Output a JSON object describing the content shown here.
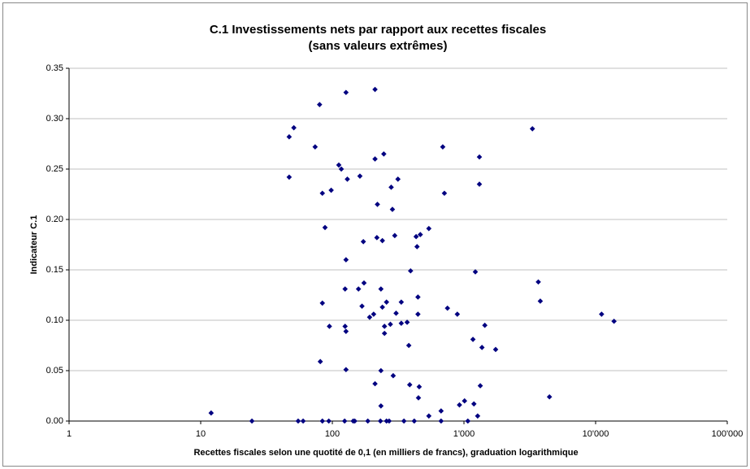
{
  "chart_data": {
    "type": "scatter",
    "title": "C.1 Investissements nets par rapport aux recettes fiscales",
    "subtitle": "(sans valeurs extrêmes)",
    "x_label": "Recettes fiscales selon une quotité de 0,1 (en milliers de francs), graduation logarithmique",
    "y_label": "Indicateur C.1",
    "x_log": true,
    "grid": true,
    "xlim": [
      1,
      100000
    ],
    "xticks": [
      1,
      10,
      100,
      {
        "value": 1000,
        "label": "1'000"
      },
      {
        "value": 10000,
        "label": "10'000"
      },
      {
        "value": 100000,
        "label": "100'000"
      }
    ],
    "ylim": [
      0,
      0.35
    ],
    "yticks": [
      {
        "value": 0,
        "label": "0.00"
      },
      {
        "value": 0.05,
        "label": "0.05"
      },
      {
        "value": 0.1,
        "label": "0.10"
      },
      {
        "value": 0.15,
        "label": "0.15"
      },
      {
        "value": 0.2,
        "label": "0.20"
      },
      {
        "value": 0.25,
        "label": "0.25"
      },
      {
        "value": 0.3,
        "label": "0.30"
      },
      {
        "value": 0.35,
        "label": "0.35"
      }
    ],
    "color": "#000080",
    "x": [
      12,
      24.5,
      55,
      60,
      47,
      47,
      51,
      74,
      80,
      81,
      84,
      84,
      84,
      88,
      94,
      95,
      98,
      112,
      117,
      124,
      125,
      125,
      127,
      127,
      127,
      127,
      130,
      144,
      148,
      158,
      162,
      168,
      172,
      174,
      186,
      192,
      206,
      211,
      211,
      211,
      220,
      218,
      232,
      234,
      234,
      234,
      240,
      240,
      246,
      249,
      249,
      258,
      258,
      270,
      276,
      280,
      286,
      290,
      298,
      305,
      315,
      334,
      334,
      350,
      370,
      381,
      387,
      393,
      419,
      433,
      440,
      447,
      447,
      451,
      457,
      466,
      541,
      541,
      670,
      670,
      690,
      710,
      749,
      890,
      924,
      1010,
      1070,
      1170,
      1190,
      1220,
      1270,
      1310,
      1310,
      1330,
      1370,
      1440,
      1740,
      3310,
      3670,
      3800,
      4460,
      11100,
      13800
    ],
    "values": [
      0.008,
      0,
      0,
      0,
      0.242,
      0.282,
      0.291,
      0.272,
      0.314,
      0.059,
      0,
      0.117,
      0.226,
      0.192,
      0,
      0.094,
      0.229,
      0.254,
      0.25,
      0,
      0.131,
      0.094,
      0.089,
      0.16,
      0.051,
      0.326,
      0.24,
      0,
      0,
      0.131,
      0.243,
      0.114,
      0.178,
      0.137,
      0,
      0.103,
      0.106,
      0.329,
      0.037,
      0.26,
      0.215,
      0.182,
      0,
      0.131,
      0.05,
      0.015,
      0.179,
      0.113,
      0.265,
      0.094,
      0.087,
      0.118,
      0,
      0,
      0.096,
      0.232,
      0.21,
      0.045,
      0.184,
      0.107,
      0.24,
      0.097,
      0.118,
      0,
      0.098,
      0.075,
      0.036,
      0.149,
      0,
      0.183,
      0.173,
      0.106,
      0.123,
      0.023,
      0.034,
      0.185,
      0.191,
      0.005,
      0.01,
      0,
      0.272,
      0.226,
      0.112,
      0.106,
      0.016,
      0.02,
      0,
      0.081,
      0.017,
      0.148,
      0.005,
      0.262,
      0.235,
      0.035,
      0.073,
      0.095,
      0.071,
      0.29,
      0.138,
      0.119,
      0.024,
      0.106,
      0.099
    ]
  }
}
